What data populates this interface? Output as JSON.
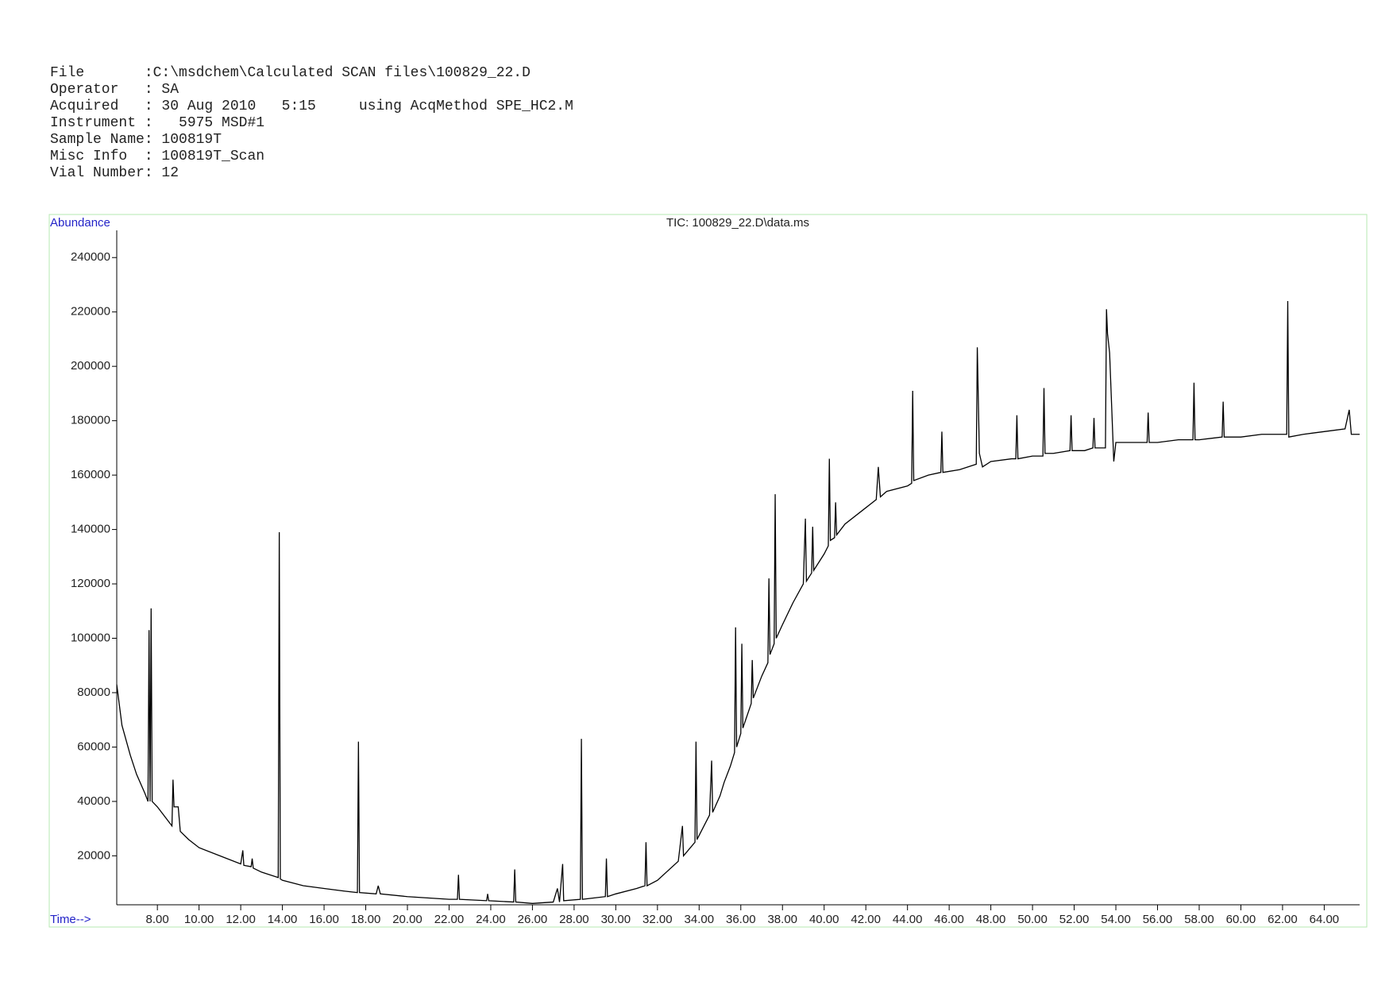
{
  "header": {
    "lines": [
      "File       :C:\\msdchem\\Calculated SCAN files\\100829_22.D",
      "Operator   : SA",
      "Acquired   : 30 Aug 2010   5:15     using AcqMethod SPE_HC2.M",
      "Instrument :   5975 MSD#1",
      "Sample Name: 100819T",
      "Misc Info  : 100819T_Scan",
      "Vial Number: 12"
    ]
  },
  "chart_data": {
    "type": "line",
    "title": "TIC: 100829_22.D\\data.ms",
    "y_label": "Abundance",
    "x_label": "Time-->",
    "color": "#000000",
    "frame_color": "#b6e8b0",
    "label_color": "#2323c8",
    "xlim": [
      6.05,
      65.7
    ],
    "ylim": [
      2000,
      250000
    ],
    "xticks": [
      {
        "value": 8,
        "label": "8.00"
      },
      {
        "value": 10,
        "label": "10.00"
      },
      {
        "value": 12,
        "label": "12.00"
      },
      {
        "value": 14,
        "label": "14.00"
      },
      {
        "value": 16,
        "label": "16.00"
      },
      {
        "value": 18,
        "label": "18.00"
      },
      {
        "value": 20,
        "label": "20.00"
      },
      {
        "value": 22,
        "label": "22.00"
      },
      {
        "value": 24,
        "label": "24.00"
      },
      {
        "value": 26,
        "label": "26.00"
      },
      {
        "value": 28,
        "label": "28.00"
      },
      {
        "value": 30,
        "label": "30.00"
      },
      {
        "value": 32,
        "label": "32.00"
      },
      {
        "value": 34,
        "label": "34.00"
      },
      {
        "value": 36,
        "label": "36.00"
      },
      {
        "value": 38,
        "label": "38.00"
      },
      {
        "value": 40,
        "label": "40.00"
      },
      {
        "value": 42,
        "label": "42.00"
      },
      {
        "value": 44,
        "label": "44.00"
      },
      {
        "value": 46,
        "label": "46.00"
      },
      {
        "value": 48,
        "label": "48.00"
      },
      {
        "value": 50,
        "label": "50.00"
      },
      {
        "value": 52,
        "label": "52.00"
      },
      {
        "value": 54,
        "label": "54.00"
      },
      {
        "value": 56,
        "label": "56.00"
      },
      {
        "value": 58,
        "label": "58.00"
      },
      {
        "value": 60,
        "label": "60.00"
      },
      {
        "value": 62,
        "label": "62.00"
      },
      {
        "value": 64,
        "label": "64.00"
      }
    ],
    "yticks": [
      20000,
      40000,
      60000,
      80000,
      100000,
      120000,
      140000,
      160000,
      180000,
      200000,
      220000,
      240000
    ],
    "x": [
      6.05,
      6.3,
      6.7,
      7.0,
      7.4,
      7.55,
      7.6,
      7.65,
      7.7,
      7.75,
      8.0,
      8.5,
      8.7,
      8.75,
      8.8,
      9.0,
      9.1,
      9.5,
      10.0,
      11.0,
      12.0,
      12.1,
      12.15,
      12.5,
      12.55,
      12.6,
      13.0,
      13.8,
      13.85,
      13.9,
      14.0,
      15.0,
      16.0,
      17.0,
      17.6,
      17.65,
      17.7,
      18.5,
      18.6,
      18.7,
      20.0,
      22.0,
      22.4,
      22.45,
      22.5,
      23.8,
      23.85,
      23.9,
      25.1,
      25.15,
      25.2,
      26.0,
      27.0,
      27.2,
      27.3,
      27.45,
      27.5,
      28.3,
      28.35,
      28.4,
      29.5,
      29.55,
      29.6,
      30.0,
      31.0,
      31.4,
      31.45,
      31.5,
      32.0,
      33.0,
      33.2,
      33.25,
      33.8,
      33.85,
      33.9,
      34.5,
      34.6,
      34.65,
      35.0,
      35.2,
      35.5,
      35.7,
      35.75,
      35.8,
      36.0,
      36.05,
      36.1,
      36.5,
      36.55,
      36.6,
      37.0,
      37.3,
      37.35,
      37.4,
      37.6,
      37.65,
      37.7,
      38.0,
      38.5,
      39.0,
      39.1,
      39.15,
      39.4,
      39.45,
      39.5,
      40.0,
      40.2,
      40.25,
      40.3,
      40.5,
      40.55,
      40.6,
      41.0,
      42.0,
      42.5,
      42.6,
      42.7,
      43.0,
      44.0,
      44.2,
      44.25,
      44.3,
      45.0,
      45.6,
      45.65,
      45.7,
      46.5,
      47.3,
      47.35,
      47.45,
      47.6,
      48.0,
      49.0,
      49.2,
      49.25,
      49.3,
      50.0,
      50.5,
      50.55,
      50.6,
      51.0,
      51.8,
      51.85,
      51.9,
      52.5,
      52.9,
      52.95,
      53.0,
      53.5,
      53.55,
      53.6,
      53.7,
      53.8,
      53.9,
      54.0,
      55.0,
      55.5,
      55.55,
      55.6,
      56.0,
      57.0,
      57.7,
      57.75,
      57.8,
      58.0,
      59.1,
      59.15,
      59.2,
      60.0,
      61.0,
      62.0,
      62.2,
      62.25,
      62.3,
      63.0,
      64.0,
      65.0,
      65.2,
      65.3,
      65.7
    ],
    "values": [
      83000,
      68000,
      57000,
      50000,
      43000,
      40000,
      103000,
      40000,
      111000,
      40000,
      38000,
      33000,
      31000,
      48000,
      38000,
      38000,
      29000,
      26000,
      23000,
      20000,
      17000,
      22000,
      16500,
      16000,
      19000,
      15500,
      14000,
      12000,
      139000,
      11500,
      11000,
      9000,
      8000,
      7000,
      6500,
      62000,
      6500,
      6000,
      9000,
      6000,
      5000,
      4000,
      4000,
      13000,
      4000,
      3500,
      6000,
      3500,
      3000,
      15000,
      3000,
      2500,
      3000,
      8000,
      3000,
      17000,
      3500,
      4000,
      63000,
      4000,
      5000,
      19000,
      5000,
      6000,
      8000,
      9000,
      25000,
      9000,
      11000,
      18000,
      31000,
      20000,
      25000,
      62000,
      26000,
      35000,
      55000,
      36000,
      42000,
      47000,
      53000,
      58000,
      104000,
      60000,
      65000,
      98000,
      67000,
      76000,
      92000,
      78000,
      86000,
      91000,
      122000,
      94000,
      98000,
      153000,
      100000,
      105000,
      113000,
      120000,
      144000,
      121000,
      124000,
      141000,
      125000,
      131000,
      134000,
      166000,
      136000,
      137000,
      150000,
      138000,
      142000,
      148000,
      151000,
      163000,
      152000,
      154000,
      156000,
      157000,
      191000,
      158000,
      160000,
      161000,
      176000,
      161000,
      162000,
      164000,
      207000,
      168000,
      163000,
      165000,
      166000,
      166000,
      182000,
      166000,
      167000,
      167000,
      192000,
      168000,
      168000,
      169000,
      182000,
      169000,
      169000,
      170000,
      181000,
      170000,
      170000,
      221000,
      212000,
      205000,
      185000,
      165000,
      172000,
      172000,
      172000,
      183000,
      172000,
      172000,
      173000,
      173000,
      194000,
      173000,
      173000,
      174000,
      187000,
      174000,
      174000,
      175000,
      175000,
      175000,
      224000,
      174000,
      175000,
      176000,
      177000,
      184000,
      175000,
      175000
    ]
  }
}
